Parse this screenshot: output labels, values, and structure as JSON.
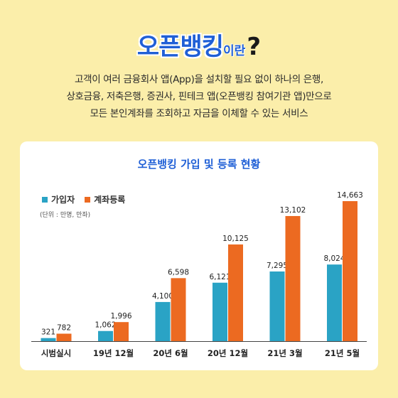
{
  "headline": {
    "main": "오픈뱅킹",
    "suffix": "이란",
    "mark": "?"
  },
  "description": [
    "고객이 여러 금융회사 앱(App)을 설치할 필요 없이 하나의 은행,",
    "상호금융, 저축은행, 증권사, 핀테크 앱(오픈뱅킹 참여기관 앱)만으로",
    "모든 본인계좌를 조회하고 자금을 이체할 수 있는 서비스"
  ],
  "chart_data": {
    "type": "bar",
    "title": "오픈뱅킹 가입 및 등록 현황",
    "unit_note": "(단위 : 만명, 만좌)",
    "categories": [
      "시범실시",
      "19년 12월",
      "20년 6월",
      "20년 12월",
      "21년 3월",
      "21년 5월"
    ],
    "series": [
      {
        "name": "가입자",
        "color": "#2aa3c5",
        "values": [
          321,
          1062,
          4100,
          6121,
          7295,
          8024
        ]
      },
      {
        "name": "계좌등록",
        "color": "#ec6a21",
        "values": [
          782,
          1996,
          6598,
          10125,
          13102,
          14663
        ]
      }
    ],
    "value_labels": [
      [
        "321",
        "1,062",
        "4,100",
        "6,121",
        "7,295",
        "8,024"
      ],
      [
        "782",
        "1,996",
        "6,598",
        "10,125",
        "13,102",
        "14,663"
      ]
    ],
    "ylim": [
      0,
      14663
    ],
    "legend_position": "top-left",
    "grid": false
  }
}
